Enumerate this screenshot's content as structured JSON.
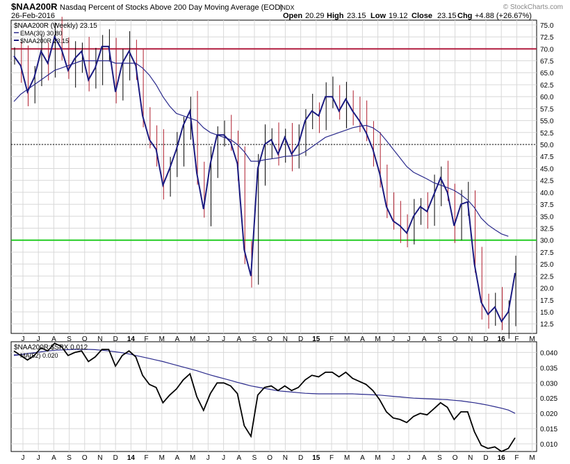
{
  "header": {
    "symbol": "$NAA200R",
    "description": "Nasdaq Percent of Stocks Above 200 Day Moving Average (EOD)",
    "exchange": "INDX",
    "watermark": "© StockCharts.com",
    "date": "26-Feb-2016",
    "open_label": "Open",
    "open": "20.29",
    "high_label": "High",
    "high": "23.15",
    "low_label": "Low",
    "low": "19.12",
    "close_label": "Close",
    "close": "23.15",
    "chg_label": "Chg",
    "chg": "+4.88 (+26.67%)"
  },
  "colors": {
    "price": "#1a1a80",
    "ema": "#2a2a8c",
    "up_bar": "#000000",
    "down_bar": "#b01e2e",
    "line70": "#b0183a",
    "line30": "#22cc22",
    "ratio": "#000000",
    "ratio_ma": "#2a2a8c",
    "grid": "#d8d8d8"
  },
  "chart_data": [
    {
      "type": "line",
      "title": "$NAA200R (Weekly) 23.15",
      "legend": [
        "EMA(30) 30.80",
        "$NAA200R 23.15"
      ],
      "legend_position": "top-left",
      "x_tick_labels": [
        "J",
        "J",
        "A",
        "S",
        "O",
        "N",
        "D",
        "14",
        "F",
        "M",
        "A",
        "M",
        "J",
        "J",
        "A",
        "S",
        "O",
        "N",
        "D",
        "15",
        "F",
        "M",
        "A",
        "M",
        "J",
        "J",
        "A",
        "S",
        "O",
        "N",
        "D",
        "16",
        "F",
        "M"
      ],
      "y_ticks": [
        "12.5",
        "15.0",
        "17.5",
        "20.0",
        "22.5",
        "25.0",
        "27.5",
        "30.0",
        "32.5",
        "35.0",
        "37.5",
        "40.0",
        "42.5",
        "45.0",
        "47.5",
        "50.0",
        "52.5",
        "55.0",
        "57.5",
        "60.0",
        "62.5",
        "65.0",
        "67.5",
        "70.0",
        "72.5",
        "75.0"
      ],
      "ylim": [
        10.5,
        76
      ],
      "horizontal_lines": [
        {
          "value": 70,
          "style": "solid",
          "color": "red"
        },
        {
          "value": 50,
          "style": "dotted",
          "color": "black"
        },
        {
          "value": 30,
          "style": "solid",
          "color": "green"
        }
      ],
      "grid": true,
      "series": [
        {
          "name": "$NAA200R",
          "values": [
            68.5,
            66.5,
            61,
            64,
            69.5,
            67,
            72.5,
            70,
            65.5,
            68,
            69.5,
            63.5,
            66,
            70.5,
            70.5,
            61,
            67,
            69.5,
            66.5,
            56,
            51,
            49,
            41.5,
            45,
            49,
            54,
            57,
            44,
            36.5,
            46,
            52,
            52,
            50.5,
            46,
            28,
            22.5,
            45,
            50,
            51,
            48,
            51.5,
            48,
            50,
            55,
            57,
            56,
            60,
            60,
            57,
            59.5,
            57,
            55,
            52.5,
            49,
            44,
            37,
            34,
            33,
            31.5,
            35,
            37,
            36,
            39.5,
            43,
            40,
            33,
            37.5,
            38,
            25,
            17,
            14.5,
            16,
            13,
            15,
            23.15
          ]
        },
        {
          "name": "EMA(30)",
          "values": [
            59,
            60.5,
            61.5,
            62.5,
            63.5,
            64.5,
            65.5,
            66,
            66.5,
            67,
            67.5,
            67.5,
            67.5,
            67.5,
            67.5,
            67,
            67,
            67,
            67,
            66,
            64.5,
            62.5,
            60,
            58,
            56.5,
            56,
            55.5,
            55,
            53.5,
            52.5,
            52,
            51.5,
            51,
            50,
            48.5,
            46.5,
            46.5,
            46.8,
            47,
            47.2,
            47.5,
            47.6,
            47.8,
            48.5,
            49.5,
            50.5,
            51.5,
            52,
            52.5,
            53,
            53.5,
            53.8,
            54,
            53.5,
            52.5,
            50.8,
            49,
            47.2,
            45.4,
            44.2,
            43.5,
            42.8,
            42,
            41.5,
            41,
            40.4,
            39.5,
            38.4,
            36.8,
            34.6,
            33.2,
            32.2,
            31.3,
            30.8
          ]
        }
      ]
    },
    {
      "type": "line",
      "title": "$NAA200R:$SPX 0.012",
      "legend": [
        "MA(52) 0.020"
      ],
      "legend_position": "top-left",
      "x_tick_labels": [
        "J",
        "J",
        "A",
        "S",
        "O",
        "N",
        "D",
        "14",
        "F",
        "M",
        "A",
        "M",
        "J",
        "J",
        "A",
        "S",
        "O",
        "N",
        "D",
        "15",
        "F",
        "M",
        "A",
        "M",
        "J",
        "J",
        "A",
        "S",
        "O",
        "N",
        "D",
        "16",
        "F",
        "M"
      ],
      "y_ticks": [
        "0.010",
        "0.015",
        "0.020",
        "0.025",
        "0.030",
        "0.035",
        "0.040"
      ],
      "ylim": [
        0.0075,
        0.0435
      ],
      "grid": true,
      "series": [
        {
          "name": "$NAA200R:$SPX",
          "values": [
            0.0405,
            0.039,
            0.0375,
            0.039,
            0.0415,
            0.0405,
            0.043,
            0.042,
            0.039,
            0.04,
            0.0405,
            0.037,
            0.0385,
            0.041,
            0.041,
            0.0355,
            0.039,
            0.0405,
            0.0385,
            0.0325,
            0.0295,
            0.0285,
            0.0235,
            0.026,
            0.028,
            0.031,
            0.033,
            0.0255,
            0.021,
            0.0265,
            0.03,
            0.03,
            0.029,
            0.0265,
            0.016,
            0.0125,
            0.026,
            0.0285,
            0.029,
            0.0275,
            0.029,
            0.0275,
            0.0285,
            0.031,
            0.0325,
            0.032,
            0.0335,
            0.0335,
            0.032,
            0.0335,
            0.0315,
            0.0305,
            0.0295,
            0.0275,
            0.0245,
            0.0205,
            0.0185,
            0.018,
            0.017,
            0.019,
            0.02,
            0.0195,
            0.0215,
            0.0235,
            0.022,
            0.018,
            0.0205,
            0.0205,
            0.014,
            0.0095,
            0.0085,
            0.009,
            0.0075,
            0.0085,
            0.012
          ]
        },
        {
          "name": "MA(52)",
          "values": [
            0.039,
            0.0393,
            0.0396,
            0.0399,
            0.0402,
            0.0405,
            0.0407,
            0.0408,
            0.0409,
            0.041,
            0.041,
            0.041,
            0.0409,
            0.0407,
            0.0405,
            0.0402,
            0.0399,
            0.0395,
            0.039,
            0.0385,
            0.038,
            0.0375,
            0.037,
            0.0364,
            0.0358,
            0.0352,
            0.0346,
            0.034,
            0.0333,
            0.0326,
            0.032,
            0.0314,
            0.0308,
            0.0302,
            0.0296,
            0.029,
            0.0286,
            0.0282,
            0.0278,
            0.0274,
            0.0272,
            0.027,
            0.0268,
            0.0266,
            0.0265,
            0.0264,
            0.0264,
            0.0264,
            0.0264,
            0.0264,
            0.0264,
            0.0263,
            0.0262,
            0.0261,
            0.026,
            0.0258,
            0.0256,
            0.0254,
            0.0252,
            0.025,
            0.0249,
            0.0248,
            0.0247,
            0.0246,
            0.0245,
            0.0243,
            0.0241,
            0.0238,
            0.0235,
            0.0231,
            0.0227,
            0.0222,
            0.0217,
            0.0211,
            0.02
          ]
        }
      ]
    }
  ]
}
